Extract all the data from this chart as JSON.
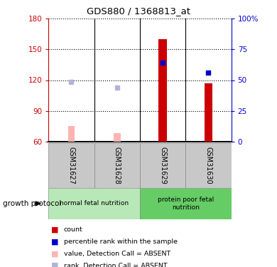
{
  "title": "GDS880 / 1368813_at",
  "samples": [
    "GSM31627",
    "GSM31628",
    "GSM31629",
    "GSM31630"
  ],
  "ylim_left": [
    60,
    180
  ],
  "ylim_right": [
    0,
    100
  ],
  "yticks_left": [
    60,
    90,
    120,
    150,
    180
  ],
  "yticks_right": [
    0,
    25,
    50,
    75,
    100
  ],
  "ytick_labels_right": [
    "0",
    "25",
    "50",
    "75",
    "100%"
  ],
  "red_bars": [
    null,
    null,
    160,
    117
  ],
  "blue_squares": [
    null,
    null,
    137,
    127
  ],
  "pink_bars": [
    75,
    68,
    null,
    null
  ],
  "lavender_squares": [
    118,
    113,
    null,
    null
  ],
  "bar_bottom": 60,
  "group1_color": "#b8e8b8",
  "group2_color": "#66cc66",
  "sample_bg": "#c8c8c8",
  "legend_colors": [
    "#cc0000",
    "#0000cc",
    "#ffb3b3",
    "#b3b3d9"
  ],
  "legend_labels": [
    "count",
    "percentile rank within the sample",
    "value, Detection Call = ABSENT",
    "rank, Detection Call = ABSENT"
  ]
}
